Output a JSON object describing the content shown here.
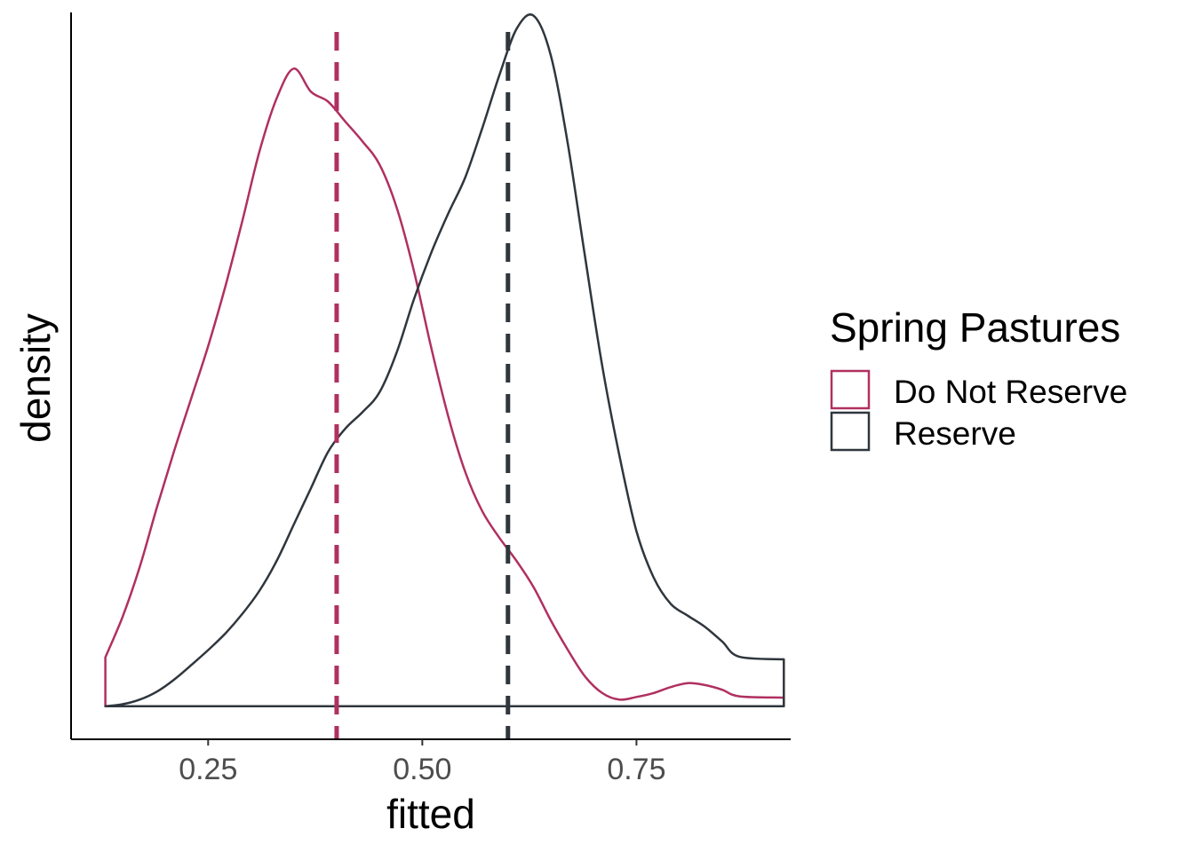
{
  "chart_data": {
    "type": "area",
    "xlabel": "fitted",
    "ylabel": "density",
    "xlim": [
      0.09,
      0.93
    ],
    "ylim": [
      -0.05,
      1.05
    ],
    "x_ticks": [
      0.25,
      0.5,
      0.75
    ],
    "x_tick_labels": [
      "0.25",
      "0.50",
      "0.75"
    ],
    "y_ticks_shown": false,
    "grid": false,
    "legend": {
      "title": "Spring Pastures",
      "position": "right",
      "entries": [
        "Do Not Reserve",
        "Reserve"
      ]
    },
    "series": [
      {
        "name": "Do Not Reserve",
        "color": "#b03060",
        "mean": 0.4,
        "points": [
          [
            0.13,
            0.074
          ],
          [
            0.15,
            0.135
          ],
          [
            0.17,
            0.21
          ],
          [
            0.19,
            0.3
          ],
          [
            0.21,
            0.385
          ],
          [
            0.23,
            0.465
          ],
          [
            0.25,
            0.545
          ],
          [
            0.27,
            0.635
          ],
          [
            0.29,
            0.735
          ],
          [
            0.31,
            0.84
          ],
          [
            0.33,
            0.92
          ],
          [
            0.35,
            0.965
          ],
          [
            0.37,
            0.93
          ],
          [
            0.39,
            0.915
          ],
          [
            0.41,
            0.885
          ],
          [
            0.43,
            0.855
          ],
          [
            0.45,
            0.82
          ],
          [
            0.47,
            0.755
          ],
          [
            0.49,
            0.66
          ],
          [
            0.51,
            0.545
          ],
          [
            0.53,
            0.44
          ],
          [
            0.55,
            0.355
          ],
          [
            0.57,
            0.295
          ],
          [
            0.59,
            0.255
          ],
          [
            0.61,
            0.22
          ],
          [
            0.63,
            0.18
          ],
          [
            0.65,
            0.13
          ],
          [
            0.67,
            0.085
          ],
          [
            0.69,
            0.045
          ],
          [
            0.71,
            0.02
          ],
          [
            0.73,
            0.01
          ],
          [
            0.75,
            0.014
          ],
          [
            0.77,
            0.02
          ],
          [
            0.79,
            0.029
          ],
          [
            0.81,
            0.035
          ],
          [
            0.83,
            0.032
          ],
          [
            0.85,
            0.025
          ],
          [
            0.87,
            0.015
          ],
          [
            0.922,
            0.013
          ]
        ]
      },
      {
        "name": "Reserve",
        "color": "#2f363d",
        "mean": 0.6,
        "points": [
          [
            0.13,
            0.0
          ],
          [
            0.15,
            0.003
          ],
          [
            0.17,
            0.01
          ],
          [
            0.19,
            0.022
          ],
          [
            0.21,
            0.04
          ],
          [
            0.23,
            0.062
          ],
          [
            0.25,
            0.085
          ],
          [
            0.27,
            0.11
          ],
          [
            0.29,
            0.14
          ],
          [
            0.31,
            0.175
          ],
          [
            0.33,
            0.22
          ],
          [
            0.35,
            0.275
          ],
          [
            0.37,
            0.33
          ],
          [
            0.39,
            0.385
          ],
          [
            0.41,
            0.42
          ],
          [
            0.43,
            0.445
          ],
          [
            0.45,
            0.475
          ],
          [
            0.47,
            0.535
          ],
          [
            0.49,
            0.615
          ],
          [
            0.51,
            0.685
          ],
          [
            0.53,
            0.745
          ],
          [
            0.55,
            0.8
          ],
          [
            0.57,
            0.875
          ],
          [
            0.59,
            0.955
          ],
          [
            0.61,
            1.025
          ],
          [
            0.63,
            1.045
          ],
          [
            0.65,
            0.985
          ],
          [
            0.67,
            0.85
          ],
          [
            0.69,
            0.68
          ],
          [
            0.71,
            0.515
          ],
          [
            0.73,
            0.38
          ],
          [
            0.75,
            0.265
          ],
          [
            0.77,
            0.195
          ],
          [
            0.79,
            0.155
          ],
          [
            0.81,
            0.137
          ],
          [
            0.83,
            0.12
          ],
          [
            0.85,
            0.098
          ],
          [
            0.87,
            0.075
          ],
          [
            0.922,
            0.071
          ]
        ]
      }
    ]
  }
}
